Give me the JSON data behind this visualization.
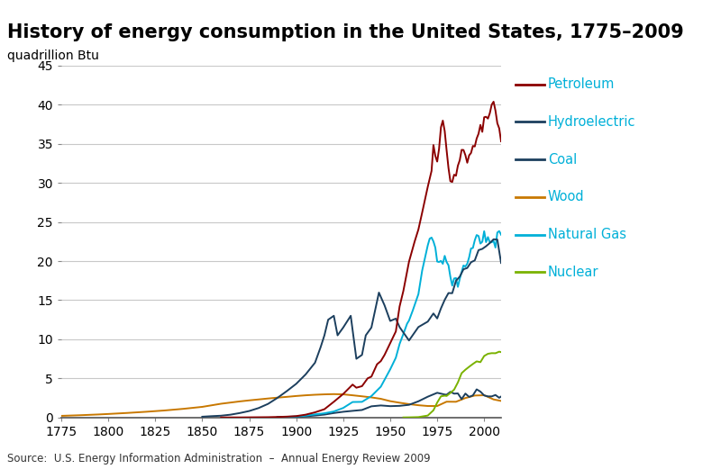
{
  "title": "History of energy consumption in the United States, 1775–2009",
  "ylabel": "quadrillion Btu",
  "source": "Source:  U.S. Energy Information Administration  –  Annual Energy Review 2009",
  "ylim": [
    0,
    45
  ],
  "xlim": [
    1775,
    2009
  ],
  "xticks": [
    1775,
    1800,
    1825,
    1850,
    1875,
    1900,
    1925,
    1950,
    1975,
    2000
  ],
  "yticks": [
    0,
    5,
    10,
    15,
    20,
    25,
    30,
    35,
    40,
    45
  ],
  "legend_labels": [
    "Petroleum",
    "Hydroelectric",
    "Coal",
    "Wood",
    "Natural Gas",
    "Nuclear"
  ],
  "legend_colors": [
    "#8b0000",
    "#1c3f5e",
    "#1c3f5e",
    "#c87800",
    "#00b0d8",
    "#7ab200"
  ],
  "series": {
    "Wood": {
      "color": "#c87800",
      "years": [
        1775,
        1780,
        1785,
        1790,
        1795,
        1800,
        1810,
        1820,
        1830,
        1840,
        1850,
        1855,
        1860,
        1865,
        1870,
        1875,
        1880,
        1885,
        1890,
        1895,
        1900,
        1905,
        1910,
        1915,
        1920,
        1925,
        1930,
        1935,
        1940,
        1945,
        1950,
        1955,
        1960,
        1965,
        1970,
        1975,
        1980,
        1985,
        1990,
        1995,
        2000,
        2005,
        2009
      ],
      "values": [
        0.2,
        0.24,
        0.28,
        0.33,
        0.38,
        0.44,
        0.57,
        0.72,
        0.89,
        1.1,
        1.35,
        1.55,
        1.75,
        1.9,
        2.05,
        2.18,
        2.3,
        2.42,
        2.53,
        2.63,
        2.74,
        2.83,
        2.9,
        2.95,
        2.98,
        2.95,
        2.83,
        2.7,
        2.56,
        2.38,
        2.08,
        1.88,
        1.7,
        1.56,
        1.46,
        1.46,
        2.01,
        2.0,
        2.48,
        2.8,
        2.84,
        2.3,
        2.11
      ]
    },
    "Coal": {
      "color": "#1c3f5e",
      "years": [
        1850,
        1855,
        1860,
        1865,
        1870,
        1875,
        1880,
        1885,
        1890,
        1895,
        1900,
        1905,
        1910,
        1913,
        1915,
        1917,
        1920,
        1922,
        1925,
        1929,
        1932,
        1935,
        1937,
        1940,
        1944,
        1947,
        1950,
        1953,
        1955,
        1960,
        1965,
        1970,
        1973,
        1975,
        1977,
        1979,
        1981,
        1983,
        1985,
        1987,
        1989,
        1991,
        1993,
        1995,
        1997,
        1999,
        2001,
        2003,
        2005,
        2007,
        2009
      ],
      "values": [
        0.09,
        0.16,
        0.22,
        0.35,
        0.56,
        0.82,
        1.2,
        1.73,
        2.5,
        3.37,
        4.3,
        5.5,
        7.0,
        9.0,
        10.5,
        12.5,
        13.0,
        10.5,
        11.5,
        13.0,
        7.5,
        8.0,
        10.5,
        11.5,
        15.97,
        14.33,
        12.34,
        12.64,
        11.55,
        9.84,
        11.56,
        12.26,
        13.3,
        12.66,
        13.95,
        15.04,
        15.91,
        15.89,
        17.48,
        18.01,
        18.95,
        19.12,
        19.85,
        20.09,
        21.4,
        21.56,
        21.9,
        22.31,
        22.79,
        22.75,
        19.76
      ]
    },
    "Petroleum": {
      "color": "#8b0000",
      "years": [
        1860,
        1870,
        1875,
        1880,
        1885,
        1890,
        1895,
        1900,
        1905,
        1910,
        1915,
        1920,
        1925,
        1930,
        1932,
        1935,
        1938,
        1940,
        1943,
        1945,
        1947,
        1950,
        1953,
        1955,
        1957,
        1960,
        1963,
        1965,
        1967,
        1970,
        1972,
        1973,
        1974,
        1975,
        1976,
        1977,
        1978,
        1979,
        1980,
        1981,
        1982,
        1983,
        1984,
        1985,
        1986,
        1987,
        1988,
        1989,
        1990,
        1991,
        1992,
        1993,
        1994,
        1995,
        1996,
        1997,
        1998,
        1999,
        2000,
        2001,
        2002,
        2003,
        2004,
        2005,
        2006,
        2007,
        2008,
        2009
      ],
      "values": [
        0.0,
        0.0,
        0.01,
        0.02,
        0.03,
        0.06,
        0.1,
        0.17,
        0.35,
        0.65,
        1.05,
        2.0,
        3.0,
        4.2,
        3.8,
        4.0,
        5.0,
        5.22,
        6.8,
        7.2,
        8.0,
        9.5,
        11.0,
        14.2,
        16.18,
        19.92,
        22.5,
        24.04,
        26.2,
        29.52,
        31.54,
        34.84,
        33.46,
        32.73,
        34.37,
        37.12,
        37.97,
        36.63,
        34.2,
        31.93,
        30.22,
        30.12,
        31.05,
        30.92,
        32.2,
        32.9,
        34.23,
        34.21,
        33.55,
        32.58,
        33.53,
        33.83,
        34.73,
        34.66,
        35.68,
        36.29,
        37.42,
        36.53,
        38.4,
        38.46,
        38.23,
        38.92,
        40.01,
        40.39,
        39.25,
        37.63,
        36.98,
        35.32
      ]
    },
    "Natural Gas": {
      "color": "#00b0d8",
      "years": [
        1890,
        1895,
        1900,
        1905,
        1910,
        1915,
        1920,
        1925,
        1930,
        1935,
        1940,
        1945,
        1950,
        1953,
        1955,
        1957,
        1959,
        1960,
        1962,
        1965,
        1967,
        1970,
        1971,
        1972,
        1973,
        1974,
        1975,
        1976,
        1977,
        1978,
        1979,
        1980,
        1981,
        1982,
        1983,
        1984,
        1985,
        1986,
        1987,
        1988,
        1989,
        1990,
        1991,
        1992,
        1993,
        1994,
        1995,
        1996,
        1997,
        1998,
        1999,
        2000,
        2001,
        2002,
        2003,
        2004,
        2005,
        2006,
        2007,
        2008,
        2009
      ],
      "values": [
        0.04,
        0.07,
        0.13,
        0.22,
        0.39,
        0.53,
        0.76,
        1.21,
        1.97,
        1.99,
        2.73,
        3.93,
        6.15,
        7.64,
        9.4,
        10.68,
        12.0,
        12.39,
        13.68,
        15.77,
        18.78,
        22.03,
        22.86,
        23.01,
        22.51,
        21.73,
        19.94,
        19.88,
        20.03,
        19.65,
        20.67,
        19.88,
        19.47,
        18.0,
        16.86,
        17.77,
        17.83,
        16.7,
        17.73,
        18.6,
        19.44,
        19.3,
        19.66,
        20.49,
        21.61,
        21.68,
        22.66,
        23.33,
        23.21,
        22.24,
        22.47,
        23.82,
        22.42,
        23.07,
        22.39,
        22.41,
        22.57,
        21.73,
        23.65,
        23.84,
        23.37
      ]
    },
    "Hydroelectric": {
      "color": "#1c3f5e",
      "years": [
        1890,
        1895,
        1900,
        1905,
        1910,
        1915,
        1920,
        1925,
        1930,
        1935,
        1940,
        1945,
        1950,
        1955,
        1960,
        1965,
        1970,
        1975,
        1979,
        1980,
        1982,
        1984,
        1986,
        1988,
        1990,
        1992,
        1994,
        1996,
        1998,
        2000,
        2002,
        2004,
        2006,
        2008,
        2009
      ],
      "values": [
        0.02,
        0.04,
        0.07,
        0.14,
        0.24,
        0.36,
        0.56,
        0.72,
        0.84,
        0.95,
        1.42,
        1.53,
        1.44,
        1.48,
        1.61,
        2.06,
        2.65,
        3.15,
        2.93,
        2.9,
        3.27,
        3.04,
        3.07,
        2.34,
        3.05,
        2.62,
        2.82,
        3.59,
        3.3,
        2.81,
        2.69,
        2.69,
        2.87,
        2.51,
        2.67
      ]
    },
    "Nuclear": {
      "color": "#7ab200",
      "years": [
        1957,
        1960,
        1965,
        1970,
        1973,
        1975,
        1977,
        1979,
        1980,
        1982,
        1984,
        1986,
        1988,
        1990,
        1992,
        1994,
        1996,
        1998,
        2000,
        2002,
        2004,
        2006,
        2008,
        2009
      ],
      "values": [
        0.0,
        0.01,
        0.04,
        0.24,
        0.91,
        1.9,
        2.7,
        2.78,
        2.74,
        3.13,
        3.55,
        4.47,
        5.66,
        6.1,
        6.48,
        6.84,
        7.17,
        7.07,
        7.86,
        8.14,
        8.22,
        8.21,
        8.41,
        8.35
      ]
    }
  },
  "background_color": "#ffffff",
  "grid_color": "#c8c8c8",
  "title_fontsize": 15,
  "axis_label_fontsize": 10,
  "tick_fontsize": 10,
  "legend_fontsize": 10.5
}
